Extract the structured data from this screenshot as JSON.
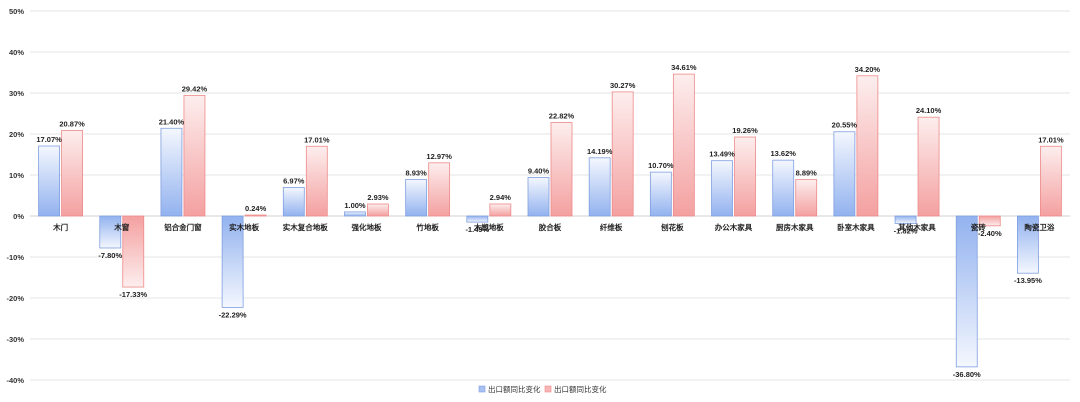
{
  "chart_data": {
    "type": "bar",
    "categories": [
      "木门",
      "木窗",
      "铝合金门窗",
      "实木地板",
      "实木复合地板",
      "强化地板",
      "竹地板",
      "木塑地板",
      "胶合板",
      "纤维板",
      "刨花板",
      "办公木家具",
      "厨房木家具",
      "卧室木家具",
      "其他木家具",
      "瓷砖",
      "陶瓷卫浴"
    ],
    "series": [
      {
        "name": "出口额同比变化",
        "values": [
          17.07,
          -7.8,
          21.4,
          -22.29,
          6.97,
          1.0,
          8.93,
          -1.49,
          9.4,
          14.19,
          10.7,
          13.49,
          13.62,
          20.55,
          -1.82,
          -36.8,
          -13.95
        ],
        "labels": [
          "17.07%",
          "-7.80%",
          "21.40%",
          "-22.29%",
          "6.97%",
          "1.00%",
          "8.93%",
          "-1.49%",
          "9.40%",
          "14.19%",
          "10.70%",
          "13.49%",
          "13.62%",
          "20.55%",
          "-1.82%",
          "-36.80%",
          "-13.95%"
        ],
        "color": "#8fb0ee"
      },
      {
        "name": "出口额同比变化",
        "values": [
          20.87,
          -17.33,
          29.42,
          0.24,
          17.01,
          2.93,
          12.97,
          2.94,
          22.82,
          30.27,
          34.61,
          19.26,
          8.89,
          34.2,
          24.1,
          -2.4,
          17.01
        ],
        "labels": [
          "20.87%",
          "-17.33%",
          "29.42%",
          "0.24%",
          "17.01%",
          "2.93%",
          "12.97%",
          "2.94%",
          "22.82%",
          "30.27%",
          "34.61%",
          "19.26%",
          "8.89%",
          "34.20%",
          "24.10%",
          "-2.40%",
          "17.01%"
        ],
        "color": "#f39a9a"
      }
    ],
    "y_ticks": [
      50,
      40,
      30,
      20,
      10,
      0,
      -10,
      -20,
      -30,
      -40
    ],
    "y_tick_labels": [
      "50%",
      "40%",
      "30%",
      "20%",
      "10%",
      "0%",
      "-10%",
      "-20%",
      "-30%",
      "-40%"
    ],
    "ylim": [
      -40,
      50
    ],
    "grid": true,
    "legend": "bottom"
  }
}
